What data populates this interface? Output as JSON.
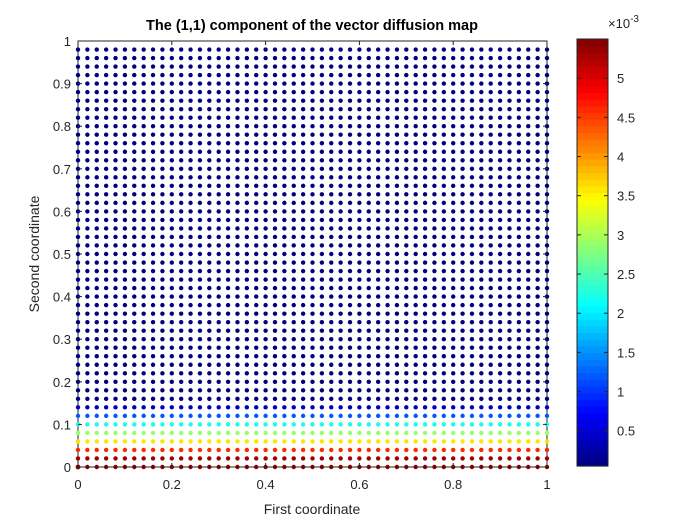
{
  "chart_data": {
    "type": "scatter",
    "title": "The (1,1) component of the vector diffusion map",
    "xlabel": "First coordinate",
    "ylabel": "Second coordinate",
    "xlim": [
      0,
      1
    ],
    "ylim": [
      0,
      1
    ],
    "xticks": [
      0,
      0.2,
      0.4,
      0.6,
      0.8,
      1
    ],
    "yticks": [
      0,
      0.1,
      0.2,
      0.3,
      0.4,
      0.5,
      0.6,
      0.7,
      0.8,
      0.9,
      1
    ],
    "grid": false,
    "colormap": "jet",
    "grid_points": {
      "x_start": 0,
      "x_end": 1,
      "x_count": 51,
      "y_start": 0,
      "y_end": 0.98,
      "y_count": 50
    },
    "rows_by_y": [
      {
        "y": 0.0,
        "value": 0.0055
      },
      {
        "y": 0.02,
        "value": 0.00535
      },
      {
        "y": 0.04,
        "value": 0.0046
      },
      {
        "y": 0.06,
        "value": 0.0036
      },
      {
        "y": 0.08,
        "value": 0.0029
      },
      {
        "y": 0.1,
        "value": 0.0022
      },
      {
        "y": 0.12,
        "value": 0.0012
      },
      {
        "y": 0.14,
        "value": 0.0004
      }
    ],
    "default_value": 5e-05,
    "origin_point": {
      "x": 0,
      "y": 0,
      "value": 0.0055
    },
    "colorbar": {
      "min": 5e-05,
      "max": 0.0055,
      "ticks": [
        0.5,
        1,
        1.5,
        2,
        2.5,
        3,
        3.5,
        4,
        4.5,
        5
      ],
      "tick_labels": [
        "0.5",
        "1",
        "1.5",
        "2",
        "2.5",
        "3",
        "3.5",
        "4",
        "4.5",
        "5"
      ],
      "exponent_label": "×10",
      "exponent_power": "-3"
    }
  }
}
